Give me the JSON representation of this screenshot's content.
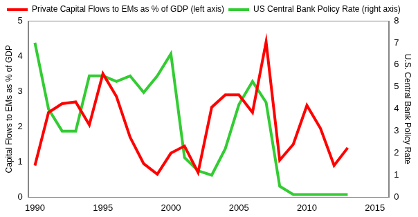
{
  "chart_data": {
    "type": "line",
    "x": [
      1990,
      1991,
      1992,
      1993,
      1994,
      1995,
      1996,
      1997,
      1998,
      1999,
      2000,
      2001,
      2002,
      2003,
      2004,
      2005,
      2006,
      2007,
      2008,
      2009,
      2010,
      2011,
      2012,
      2013
    ],
    "series": [
      {
        "name": "Private Capital Flows to EMs as % of GDP (left axis)",
        "color": "#ff0000",
        "axis": "y",
        "values": [
          0.9,
          2.4,
          2.65,
          2.7,
          2.05,
          3.5,
          2.85,
          1.7,
          0.95,
          0.65,
          1.25,
          1.45,
          0.7,
          2.55,
          2.9,
          2.9,
          2.4,
          4.4,
          1.05,
          1.5,
          2.6,
          1.95,
          0.9,
          1.4
        ]
      },
      {
        "name": "US Central Bank Policy Rate (right axis)",
        "color": "#33cc33",
        "axis": "y2",
        "values": [
          7.0,
          4.0,
          3.0,
          3.0,
          5.5,
          5.5,
          5.25,
          5.5,
          4.75,
          5.5,
          6.5,
          1.8,
          1.2,
          1.0,
          2.2,
          4.2,
          5.25,
          4.3,
          0.5,
          0.12,
          0.12,
          0.12,
          0.12,
          0.12
        ]
      }
    ],
    "y_label": "Capital Flows to EMs as % of GDP",
    "y2_label": "U.S. Central Bank Policy Rate",
    "xlim": [
      1989.5,
      2016
    ],
    "xticks": [
      1990,
      1995,
      2000,
      2005,
      2010,
      2015
    ],
    "ylim": [
      0,
      5
    ],
    "yticks": [
      0,
      1,
      2,
      3,
      4,
      5
    ],
    "y2lim": [
      0,
      8
    ],
    "y2ticks": [
      0,
      1,
      2,
      3,
      4,
      5,
      6,
      7,
      8
    ],
    "grid": false,
    "legend": "top"
  }
}
